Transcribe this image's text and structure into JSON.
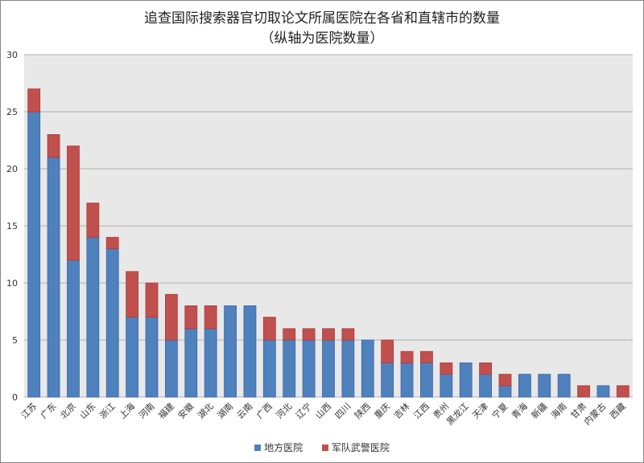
{
  "chart_data": {
    "type": "bar",
    "stacked": true,
    "title": "追查国际搜索器官切取论文所属医院在各省和直辖市的数量",
    "subtitle": "（纵轴为医院数量）",
    "xlabel": "",
    "ylabel": "",
    "ylim": [
      0,
      30
    ],
    "yticks": [
      0,
      5,
      10,
      15,
      20,
      25,
      30
    ],
    "grid": true,
    "legend_position": "bottom",
    "categories": [
      "江苏",
      "广东",
      "北京",
      "山东",
      "浙江",
      "上海",
      "河南",
      "福建",
      "安徽",
      "湖北",
      "湖南",
      "云南",
      "广西",
      "河北",
      "辽宁",
      "山西",
      "四川",
      "陕西",
      "重庆",
      "吉林",
      "江西",
      "贵州",
      "黑龙江",
      "天津",
      "宁夏",
      "青海",
      "新疆",
      "海南",
      "甘肃",
      "内蒙古",
      "西藏"
    ],
    "series": [
      {
        "name": "地方医院",
        "color": "#4f81bd",
        "values": [
          25,
          21,
          12,
          14,
          13,
          7,
          7,
          5,
          6,
          6,
          8,
          8,
          5,
          5,
          5,
          5,
          5,
          5,
          3,
          3,
          3,
          2,
          3,
          2,
          1,
          2,
          2,
          2,
          0,
          1,
          0
        ]
      },
      {
        "name": "军队武警医院",
        "color": "#c0504d",
        "values": [
          2,
          2,
          10,
          3,
          1,
          4,
          3,
          4,
          2,
          2,
          0,
          0,
          2,
          1,
          1,
          1,
          1,
          0,
          2,
          1,
          1,
          1,
          0,
          1,
          1,
          0,
          0,
          0,
          1,
          0,
          1
        ]
      }
    ]
  }
}
